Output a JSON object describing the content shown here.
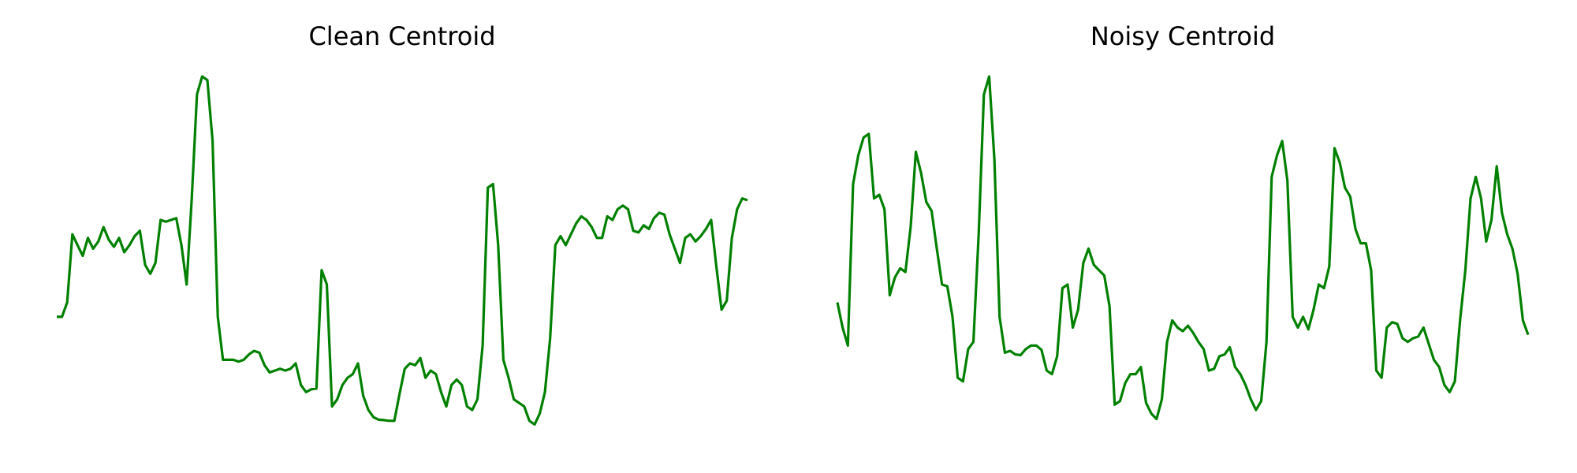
{
  "chart_data": [
    {
      "type": "line",
      "title": "Clean Centroid",
      "xlabel": "",
      "ylabel": "",
      "axes_visible": false,
      "grid": false,
      "color": "#008000",
      "ylim": [
        0,
        1
      ],
      "y": [
        0.33,
        0.33,
        0.37,
        0.56,
        0.53,
        0.5,
        0.55,
        0.52,
        0.54,
        0.58,
        0.545,
        0.525,
        0.55,
        0.51,
        0.53,
        0.555,
        0.57,
        0.475,
        0.45,
        0.48,
        0.6,
        0.595,
        0.6,
        0.605,
        0.53,
        0.42,
        0.66,
        0.95,
        1.0,
        0.99,
        0.82,
        0.33,
        0.21,
        0.21,
        0.21,
        0.205,
        0.21,
        0.225,
        0.235,
        0.23,
        0.195,
        0.175,
        0.18,
        0.185,
        0.18,
        0.185,
        0.2,
        0.14,
        0.12,
        0.128,
        0.13,
        0.46,
        0.42,
        0.08,
        0.1,
        0.14,
        0.16,
        0.17,
        0.2,
        0.11,
        0.07,
        0.05,
        0.043,
        0.042,
        0.04,
        0.04,
        0.115,
        0.185,
        0.2,
        0.195,
        0.215,
        0.16,
        0.18,
        0.17,
        0.12,
        0.08,
        0.14,
        0.155,
        0.14,
        0.08,
        0.07,
        0.1,
        0.25,
        0.69,
        0.7,
        0.53,
        0.21,
        0.16,
        0.1,
        0.09,
        0.08,
        0.04,
        0.03,
        0.06,
        0.12,
        0.27,
        0.53,
        0.555,
        0.53,
        0.56,
        0.59,
        0.61,
        0.6,
        0.58,
        0.55,
        0.55,
        0.61,
        0.6,
        0.63,
        0.64,
        0.63,
        0.57,
        0.565,
        0.585,
        0.575,
        0.605,
        0.62,
        0.615,
        0.56,
        0.52,
        0.48,
        0.55,
        0.56,
        0.54,
        0.555,
        0.575,
        0.6,
        0.47,
        0.35,
        0.375,
        0.55,
        0.63,
        0.66,
        0.655
      ]
    },
    {
      "type": "line",
      "title": "Noisy Centroid",
      "xlabel": "",
      "ylabel": "",
      "axes_visible": false,
      "grid": false,
      "color": "#008000",
      "ylim": [
        0,
        1
      ],
      "y": [
        0.37,
        0.3,
        0.25,
        0.7,
        0.78,
        0.83,
        0.84,
        0.66,
        0.67,
        0.63,
        0.39,
        0.44,
        0.465,
        0.455,
        0.58,
        0.79,
        0.73,
        0.65,
        0.625,
        0.52,
        0.42,
        0.415,
        0.33,
        0.16,
        0.15,
        0.24,
        0.26,
        0.56,
        0.95,
        1.0,
        0.77,
        0.33,
        0.23,
        0.235,
        0.225,
        0.223,
        0.24,
        0.25,
        0.25,
        0.238,
        0.18,
        0.17,
        0.22,
        0.41,
        0.42,
        0.3,
        0.35,
        0.48,
        0.52,
        0.475,
        0.46,
        0.445,
        0.36,
        0.085,
        0.095,
        0.145,
        0.17,
        0.17,
        0.19,
        0.09,
        0.06,
        0.045,
        0.1,
        0.26,
        0.32,
        0.3,
        0.29,
        0.305,
        0.285,
        0.26,
        0.24,
        0.18,
        0.185,
        0.22,
        0.225,
        0.245,
        0.19,
        0.17,
        0.14,
        0.1,
        0.07,
        0.095,
        0.26,
        0.72,
        0.78,
        0.82,
        0.71,
        0.33,
        0.3,
        0.33,
        0.295,
        0.35,
        0.42,
        0.41,
        0.47,
        0.8,
        0.76,
        0.69,
        0.665,
        0.575,
        0.535,
        0.535,
        0.46,
        0.18,
        0.16,
        0.3,
        0.315,
        0.31,
        0.27,
        0.26,
        0.27,
        0.275,
        0.3,
        0.255,
        0.21,
        0.19,
        0.14,
        0.12,
        0.15,
        0.32,
        0.46,
        0.66,
        0.72,
        0.66,
        0.54,
        0.6,
        0.75,
        0.62,
        0.56,
        0.52,
        0.45,
        0.32,
        0.28
      ]
    }
  ]
}
